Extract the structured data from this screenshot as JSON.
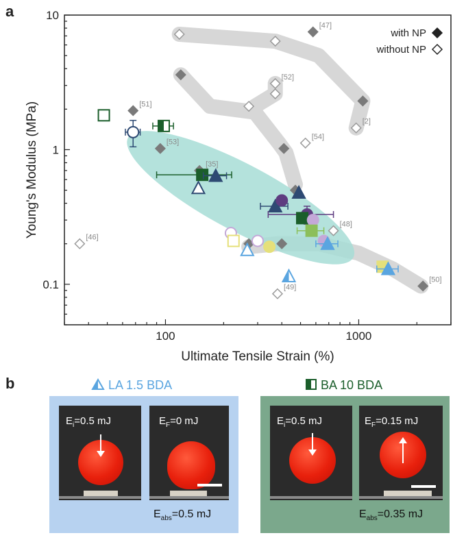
{
  "panel_a_label": "a",
  "panel_b_label": "b",
  "chart_data": {
    "type": "scatter",
    "xlabel": "Ultimate Tensile Strain (%)",
    "ylabel": "Young's Modulus (MPa)",
    "xscale": "log",
    "yscale": "log",
    "xlim": [
      30,
      3000
    ],
    "ylim": [
      0.05,
      10
    ],
    "xticks": [
      {
        "v": 100,
        "label": "100"
      },
      {
        "v": 1000,
        "label": "1000"
      }
    ],
    "yticks": [
      {
        "v": 0.1,
        "label": "0.1"
      },
      {
        "v": 1,
        "label": "1"
      },
      {
        "v": 10,
        "label": "10"
      }
    ],
    "legend": [
      {
        "label": "with NP",
        "marker": "diamond",
        "filled": true
      },
      {
        "label": "without NP",
        "marker": "diamond",
        "filled": false
      }
    ],
    "colors": {
      "lit_filled": "#7a7a7a",
      "lit_open": "#9a9a9a",
      "ellipse": "#a7ddd6",
      "shade": "#d7d7d7",
      "navy": "#2e4a73",
      "purple": "#5e3c80",
      "lilac": "#c4a8d8",
      "lightblue": "#5aa5e0",
      "dkgreen": "#1b5e2b",
      "ltgreen": "#8cbf5a",
      "yellow": "#e5e07a",
      "grey_err": "#888888"
    },
    "ellipse": {
      "x_center": 245,
      "y_center": 0.44,
      "rx_decades": 0.66,
      "ry_decades": 0.65,
      "angle": 28
    },
    "shaded_paths": [
      {
        "points": [
          [
            118,
            7.2
          ],
          [
            370,
            6.4
          ],
          [
            620,
            5.0
          ],
          [
            1050,
            2.3
          ],
          [
            970,
            1.45
          ]
        ],
        "width": 22
      },
      {
        "points": [
          [
            120,
            3.6
          ],
          [
            170,
            2.1
          ],
          [
            290,
            1.9
          ],
          [
            390,
            1.1
          ],
          [
            420,
            0.95
          ],
          [
            470,
            0.55
          ]
        ],
        "width": 22
      },
      {
        "points": [
          [
            290,
            2.1
          ],
          [
            370,
            2.6
          ],
          [
            370,
            3.1
          ]
        ],
        "width": 22
      },
      {
        "points": [
          [
            270,
            0.19
          ],
          [
            380,
            0.2
          ],
          [
            620,
            0.2
          ],
          [
            1000,
            0.17
          ],
          [
            1500,
            0.13
          ],
          [
            2100,
            0.097
          ]
        ],
        "width": 22
      }
    ],
    "literature": [
      {
        "x": 580,
        "y": 7.5,
        "filled": true,
        "ref": "[47]"
      },
      {
        "x": 118,
        "y": 7.2,
        "filled": false,
        "ref": ""
      },
      {
        "x": 370,
        "y": 6.4,
        "filled": false,
        "ref": ""
      },
      {
        "x": 120,
        "y": 3.6,
        "filled": true,
        "ref": ""
      },
      {
        "x": 370,
        "y": 3.1,
        "filled": false,
        "ref": "[52]"
      },
      {
        "x": 370,
        "y": 2.6,
        "filled": false,
        "ref": ""
      },
      {
        "x": 270,
        "y": 2.1,
        "filled": false,
        "ref": ""
      },
      {
        "x": 1050,
        "y": 2.3,
        "filled": true,
        "ref": ""
      },
      {
        "x": 970,
        "y": 1.45,
        "filled": false,
        "ref": "[2]"
      },
      {
        "x": 68,
        "y": 1.95,
        "filled": true,
        "ref": "[51]"
      },
      {
        "x": 94,
        "y": 1.02,
        "filled": true,
        "ref": "[53]"
      },
      {
        "x": 410,
        "y": 1.02,
        "filled": true,
        "ref": ""
      },
      {
        "x": 530,
        "y": 1.12,
        "filled": false,
        "ref": "[54]"
      },
      {
        "x": 150,
        "y": 0.7,
        "filled": true,
        "ref": "[35]"
      },
      {
        "x": 470,
        "y": 0.5,
        "filled": true,
        "ref": ""
      },
      {
        "x": 740,
        "y": 0.25,
        "filled": false,
        "ref": "[48]"
      },
      {
        "x": 36,
        "y": 0.2,
        "filled": false,
        "ref": "[46]"
      },
      {
        "x": 270,
        "y": 0.2,
        "filled": true,
        "ref": ""
      },
      {
        "x": 400,
        "y": 0.2,
        "filled": true,
        "ref": ""
      },
      {
        "x": 380,
        "y": 0.085,
        "filled": false,
        "ref": "[49]"
      },
      {
        "x": 2150,
        "y": 0.097,
        "filled": true,
        "ref": "[50]"
      }
    ],
    "samples": [
      {
        "x": 48,
        "y": 1.8,
        "marker": "square",
        "fill": "none",
        "color": "dkgreen"
      },
      {
        "x": 68,
        "y": 1.35,
        "marker": "circle",
        "fill": "none",
        "color": "navy",
        "xerr": 6,
        "yerr": 0.3
      },
      {
        "x": 98,
        "y": 1.5,
        "marker": "square",
        "fill": "half",
        "color": "dkgreen",
        "xerr": 12
      },
      {
        "x": 155,
        "y": 0.65,
        "marker": "square",
        "fill": "full",
        "color": "dkgreen",
        "xerr": 65
      },
      {
        "x": 182,
        "y": 0.64,
        "marker": "triangle",
        "fill": "full",
        "color": "navy",
        "xerr": 25
      },
      {
        "x": 148,
        "y": 0.52,
        "marker": "triangle",
        "fill": "none",
        "color": "navy"
      },
      {
        "x": 370,
        "y": 0.38,
        "marker": "triangle",
        "fill": "full",
        "color": "navy",
        "xerr": 60
      },
      {
        "x": 400,
        "y": 0.42,
        "marker": "circle",
        "fill": "full",
        "color": "purple"
      },
      {
        "x": 490,
        "y": 0.48,
        "marker": "triangle",
        "fill": "full",
        "color": "navy"
      },
      {
        "x": 540,
        "y": 0.33,
        "marker": "circle",
        "fill": "full",
        "color": "purple",
        "xerr": 200,
        "yerr": 0.05
      },
      {
        "x": 510,
        "y": 0.31,
        "marker": "square",
        "fill": "full",
        "color": "dkgreen"
      },
      {
        "x": 580,
        "y": 0.3,
        "marker": "circle",
        "fill": "full",
        "color": "lilac"
      },
      {
        "x": 570,
        "y": 0.25,
        "marker": "square",
        "fill": "full",
        "color": "ltgreen",
        "xerr": 90
      },
      {
        "x": 660,
        "y": 0.21,
        "marker": "circle",
        "fill": "full",
        "color": "lilac"
      },
      {
        "x": 690,
        "y": 0.2,
        "marker": "triangle",
        "fill": "full",
        "color": "lightblue",
        "xerr": 90
      },
      {
        "x": 218,
        "y": 0.24,
        "marker": "circle",
        "fill": "none",
        "color": "lilac"
      },
      {
        "x": 225,
        "y": 0.21,
        "marker": "square",
        "fill": "none",
        "color": "yellow"
      },
      {
        "x": 300,
        "y": 0.21,
        "marker": "circle",
        "fill": "none",
        "color": "lilac"
      },
      {
        "x": 265,
        "y": 0.18,
        "marker": "triangle",
        "fill": "none",
        "color": "lightblue"
      },
      {
        "x": 345,
        "y": 0.19,
        "marker": "circle",
        "fill": "full",
        "color": "yellow"
      },
      {
        "x": 1330,
        "y": 0.135,
        "marker": "square",
        "fill": "full",
        "color": "yellow"
      },
      {
        "x": 1420,
        "y": 0.13,
        "marker": "triangle",
        "fill": "full",
        "color": "lightblue",
        "xerr": 180
      },
      {
        "x": 435,
        "y": 0.115,
        "marker": "triangle",
        "fill": "half",
        "color": "lightblue"
      }
    ]
  },
  "panel_b": {
    "left": {
      "title": "LA 1.5 BDA",
      "box_color": "#b7d2f0",
      "title_color": "#5aa5e0",
      "photo1_label_base": "E",
      "photo1_label_sub": "i",
      "photo1_label_rest": "=0.5 mJ",
      "photo2_label_base": "E",
      "photo2_label_sub": "F",
      "photo2_label_rest": "=0 mJ",
      "absorbed_base": "E",
      "absorbed_sub": "abs",
      "absorbed_rest": "=0.5 mJ"
    },
    "right": {
      "title": "BA 10 BDA",
      "box_color": "#7ba88c",
      "title_color": "#1b5e2b",
      "photo1_label_base": "E",
      "photo1_label_sub": "i",
      "photo1_label_rest": "=0.5 mJ",
      "photo2_label_base": "E",
      "photo2_label_sub": "F",
      "photo2_label_rest": "=0.15 mJ",
      "absorbed_base": "E",
      "absorbed_sub": "abs",
      "absorbed_rest": "=0.35 mJ"
    }
  }
}
